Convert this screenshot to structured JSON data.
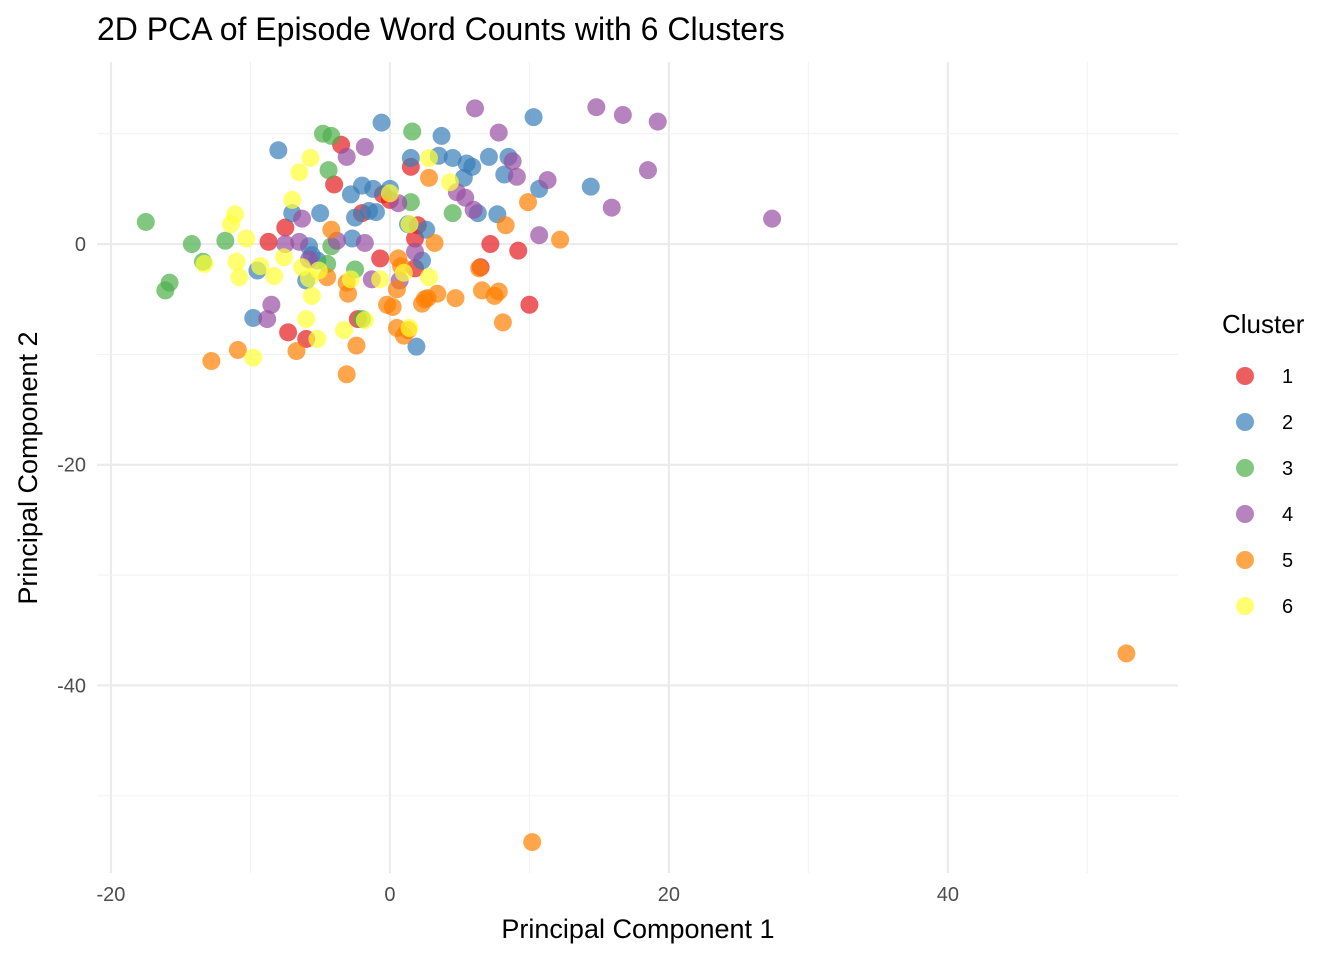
{
  "chart_data": {
    "type": "scatter",
    "title": "2D PCA of Episode Word Counts with 6 Clusters",
    "xlabel": "Principal Component 1",
    "ylabel": "Principal Component 2",
    "xlim": [
      -21,
      56.5
    ],
    "ylim": [
      -57,
      16.5
    ],
    "x_ticks": [
      -20,
      0,
      20,
      40
    ],
    "y_ticks": [
      0,
      -20,
      -40
    ],
    "x_tick_labels": [
      "-20",
      "0",
      "20",
      "40"
    ],
    "y_tick_labels": [
      "0",
      "-20",
      "-40"
    ],
    "grid": true,
    "legend": {
      "title": "Cluster",
      "position": "right"
    },
    "series": [
      {
        "name": "1",
        "color": "#e41a1c",
        "points": [
          [
            -3.5,
            9
          ],
          [
            -4,
            5.4
          ],
          [
            1.5,
            7
          ],
          [
            -7.5,
            1.5
          ],
          [
            -8.7,
            0.2
          ],
          [
            -2,
            2.8
          ],
          [
            -0.5,
            4.5
          ],
          [
            0,
            4
          ],
          [
            2,
            1.7
          ],
          [
            1.8,
            0.5
          ],
          [
            -0.7,
            -1.3
          ],
          [
            1.8,
            -2.2
          ],
          [
            6.5,
            -2.1
          ],
          [
            7.2,
            0
          ],
          [
            9.2,
            -0.6
          ],
          [
            10,
            -5.5
          ],
          [
            -7.3,
            -8
          ],
          [
            -6,
            -8.6
          ],
          [
            -2.3,
            -6.8
          ]
        ]
      },
      {
        "name": "2",
        "color": "#377eb8",
        "points": [
          [
            -8,
            8.5
          ],
          [
            -0.6,
            11
          ],
          [
            10.3,
            11.5
          ],
          [
            3.7,
            9.8
          ],
          [
            3.5,
            8
          ],
          [
            4.5,
            7.8
          ],
          [
            1.5,
            7.8
          ],
          [
            5.5,
            7.3
          ],
          [
            5.9,
            7
          ],
          [
            7.1,
            7.9
          ],
          [
            8.5,
            7.9
          ],
          [
            8.2,
            6.3
          ],
          [
            5.3,
            6
          ],
          [
            10.7,
            5
          ],
          [
            14.4,
            5.2
          ],
          [
            -2,
            5.3
          ],
          [
            -2.8,
            4.5
          ],
          [
            -1.2,
            5
          ],
          [
            0,
            5
          ],
          [
            -2.5,
            2.4
          ],
          [
            -1.5,
            3
          ],
          [
            -1,
            2.9
          ],
          [
            -5,
            2.8
          ],
          [
            6.3,
            2.8
          ],
          [
            7.7,
            2.7
          ],
          [
            1.3,
            1.8
          ],
          [
            2.6,
            1.3
          ],
          [
            -2.7,
            0.5
          ],
          [
            -5.8,
            -0.2
          ],
          [
            -5.6,
            -1
          ],
          [
            -5.2,
            -1.5
          ],
          [
            -9.5,
            -2.4
          ],
          [
            -6,
            -3.3
          ],
          [
            2.3,
            -1.5
          ],
          [
            1.9,
            -9.3
          ],
          [
            -9.8,
            -6.7
          ],
          [
            -7,
            2.8
          ]
        ]
      },
      {
        "name": "3",
        "color": "#4daf4a",
        "points": [
          [
            -17.5,
            2
          ],
          [
            -14.2,
            0
          ],
          [
            -13.4,
            -1.6
          ],
          [
            -11.8,
            0.3
          ],
          [
            -15.8,
            -3.5
          ],
          [
            -16.1,
            -4.2
          ],
          [
            -4.8,
            10
          ],
          [
            -4.2,
            9.8
          ],
          [
            1.6,
            10.2
          ],
          [
            -4.4,
            6.7
          ],
          [
            1.5,
            3.8
          ],
          [
            4.5,
            2.8
          ],
          [
            -4.2,
            -0.2
          ],
          [
            -4.5,
            -1.8
          ],
          [
            -2.5,
            -2.3
          ],
          [
            -2,
            -6.8
          ]
        ]
      },
      {
        "name": "4",
        "color": "#984ea3",
        "points": [
          [
            6.1,
            12.3
          ],
          [
            7.8,
            10.1
          ],
          [
            14.8,
            12.4
          ],
          [
            16.7,
            11.7
          ],
          [
            19.2,
            11.1
          ],
          [
            -1.8,
            8.8
          ],
          [
            -3.1,
            7.9
          ],
          [
            8.8,
            7.5
          ],
          [
            9.1,
            6.1
          ],
          [
            11.3,
            5.8
          ],
          [
            18.5,
            6.7
          ],
          [
            4.8,
            4.7
          ],
          [
            5.4,
            4.2
          ],
          [
            6,
            3.1
          ],
          [
            15.9,
            3.3
          ],
          [
            27.4,
            2.3
          ],
          [
            -6.3,
            2.3
          ],
          [
            0.6,
            3.7
          ],
          [
            10.7,
            0.8
          ],
          [
            -1.8,
            0.1
          ],
          [
            -3.8,
            0.3
          ],
          [
            -5.8,
            -1.4
          ],
          [
            1.8,
            -0.7
          ],
          [
            -1.3,
            -3.2
          ],
          [
            0.7,
            -3.3
          ],
          [
            -8.5,
            -5.5
          ],
          [
            -8.8,
            -6.8
          ],
          [
            -7.5,
            0
          ],
          [
            -6.5,
            0.2
          ]
        ]
      },
      {
        "name": "5",
        "color": "#ff7f00",
        "points": [
          [
            2.8,
            6
          ],
          [
            9.9,
            3.8
          ],
          [
            8.3,
            1.7
          ],
          [
            12.2,
            0.4
          ],
          [
            3.2,
            0.1
          ],
          [
            -4.2,
            1.3
          ],
          [
            0.6,
            -1.3
          ],
          [
            0.8,
            -2
          ],
          [
            -3.1,
            -3.5
          ],
          [
            -4.5,
            -3
          ],
          [
            -3,
            -4.5
          ],
          [
            6.4,
            -2.2
          ],
          [
            0.5,
            -4.1
          ],
          [
            3.4,
            -4.5
          ],
          [
            6.6,
            -4.2
          ],
          [
            7.8,
            -4.3
          ],
          [
            7.5,
            -4.7
          ],
          [
            4.7,
            -4.9
          ],
          [
            2.7,
            -4.9
          ],
          [
            2.3,
            -5.4
          ],
          [
            -0.2,
            -5.5
          ],
          [
            0.2,
            -5.7
          ],
          [
            8.1,
            -7.1
          ],
          [
            0.5,
            -7.6
          ],
          [
            1,
            -8.3
          ],
          [
            -2.4,
            -9.2
          ],
          [
            -3.1,
            -11.8
          ],
          [
            -6.7,
            -9.7
          ],
          [
            -10.9,
            -9.6
          ],
          [
            -12.8,
            -10.6
          ],
          [
            10.2,
            -54.2
          ],
          [
            52.8,
            -37.1
          ],
          [
            2.5,
            -5
          ],
          [
            1.3,
            -7.8
          ]
        ]
      },
      {
        "name": "6",
        "color": "#ffff33",
        "points": [
          [
            -5.7,
            7.8
          ],
          [
            -6.5,
            6.5
          ],
          [
            2.8,
            7.8
          ],
          [
            4.3,
            5.6
          ],
          [
            -7,
            4
          ],
          [
            0,
            4.6
          ],
          [
            -11.1,
            2.7
          ],
          [
            -11.4,
            1.8
          ],
          [
            1.4,
            1.8
          ],
          [
            -10.3,
            0.5
          ],
          [
            -13.3,
            -1.8
          ],
          [
            -11,
            -1.6
          ],
          [
            -9.3,
            -2
          ],
          [
            -7.6,
            -1.2
          ],
          [
            -6.3,
            -2.1
          ],
          [
            -5.8,
            -3.1
          ],
          [
            -5.1,
            -2.4
          ],
          [
            -10.8,
            -3
          ],
          [
            -8.3,
            -2.9
          ],
          [
            -5.6,
            -4.7
          ],
          [
            -2.8,
            -3.2
          ],
          [
            -0.7,
            -3.2
          ],
          [
            1,
            -2.6
          ],
          [
            2.8,
            -3
          ],
          [
            -6,
            -6.8
          ],
          [
            -3.3,
            -7.8
          ],
          [
            -1.8,
            -6.9
          ],
          [
            -5.2,
            -8.6
          ],
          [
            -9.8,
            -10.3
          ],
          [
            1.4,
            -7.6
          ]
        ]
      }
    ]
  }
}
